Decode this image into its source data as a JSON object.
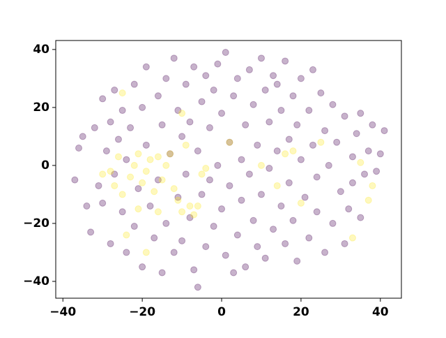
{
  "chart_data": {
    "type": "scatter",
    "xlim": [
      -41.8,
      45.3
    ],
    "ylim": [
      -45.8,
      43.1
    ],
    "xticks": [
      {
        "value": -40,
        "label": "−40"
      },
      {
        "value": -20,
        "label": "−20"
      },
      0,
      20,
      40
    ],
    "yticks": [
      {
        "value": -40,
        "label": "−40"
      },
      {
        "value": -20,
        "label": "−20"
      },
      0,
      20,
      40
    ],
    "grid": false,
    "alpha": 0.3,
    "series": [
      {
        "color": "#440154",
        "x": [
          -37,
          -36,
          -35,
          -34,
          -33,
          -32,
          -31,
          -30,
          -30,
          -29,
          -28,
          -28,
          -27,
          -27,
          -26,
          -25,
          -25,
          -24,
          -24,
          -23,
          -22,
          -22,
          -21,
          -20,
          -20,
          -19,
          -19,
          -18,
          -17,
          -16,
          -16,
          -15,
          -15,
          -14,
          -14,
          -13,
          -12,
          -12,
          -11,
          -11,
          -10,
          -10,
          -9,
          -9,
          -8,
          -8,
          -7,
          -7,
          -6,
          -6,
          -5,
          -5,
          -4,
          -4,
          -3,
          -3,
          -2,
          -2,
          -1,
          -1,
          0,
          0,
          1,
          1,
          2,
          2,
          3,
          3,
          4,
          4,
          5,
          5,
          6,
          6,
          7,
          7,
          8,
          8,
          9,
          9,
          10,
          10,
          11,
          11,
          12,
          12,
          13,
          13,
          14,
          14,
          15,
          15,
          16,
          16,
          17,
          17,
          18,
          18,
          19,
          19,
          20,
          20,
          21,
          22,
          22,
          23,
          23,
          24,
          24,
          25,
          26,
          26,
          27,
          28,
          28,
          29,
          30,
          31,
          31,
          32,
          33,
          33,
          34,
          35,
          35,
          36,
          37,
          38,
          39,
          40,
          41
        ],
        "values": [
          -5,
          6,
          10,
          -14,
          -23,
          13,
          -7,
          -13,
          23,
          5,
          -27,
          15,
          26,
          -3,
          9,
          19,
          -16,
          -30,
          2,
          13,
          -21,
          28,
          -8,
          20,
          -35,
          34,
          7,
          -14,
          -25,
          24,
          -5,
          14,
          -37,
          30,
          -20,
          4,
          37,
          -30,
          19,
          -11,
          10,
          -26,
          28,
          -3,
          -18,
          15,
          34,
          -36,
          -42,
          5,
          22,
          -10,
          -28,
          31,
          13,
          -5,
          -21,
          26,
          35,
          0,
          -15,
          18,
          39,
          -31,
          8,
          -7,
          -37,
          24,
          30,
          -24,
          2,
          -12,
          14,
          -35,
          33,
          -3,
          21,
          -19,
          -28,
          7,
          37,
          -10,
          26,
          -32,
          15,
          -1,
          -22,
          31,
          5,
          28,
          -14,
          19,
          -27,
          36,
          -6,
          9,
          24,
          -19,
          -33,
          14,
          2,
          30,
          -11,
          -25,
          19,
          33,
          7,
          -4,
          -16,
          25,
          -30,
          12,
          0,
          -20,
          21,
          8,
          -9,
          -27,
          17,
          -15,
          3,
          -6,
          11,
          -18,
          18,
          -3,
          5,
          14,
          -2,
          4,
          12
        ]
      },
      {
        "color": "#fde725",
        "x": [
          -30,
          -28,
          -27,
          -26,
          -25,
          -25,
          -24,
          -23,
          -22,
          -21,
          -21,
          -20,
          -19,
          -19,
          -18,
          -17,
          -16,
          -16,
          -15,
          -14,
          -13,
          -12,
          -11,
          -10,
          -10,
          -9,
          -8,
          -7,
          -6,
          -5,
          -4,
          2,
          10,
          14,
          16,
          18,
          20,
          25,
          33,
          35,
          37,
          38
        ],
        "values": [
          -3,
          -2,
          -7,
          3,
          25,
          -10,
          -24,
          -4,
          0,
          4,
          -15,
          -6,
          -30,
          -2,
          2,
          -9,
          3,
          -16,
          -5,
          0,
          4,
          -8,
          -12,
          18,
          -16,
          7,
          -14,
          -17,
          -14,
          -3,
          -1,
          8,
          0,
          -7,
          4,
          5,
          -13,
          8,
          -25,
          1,
          -12,
          -7
        ]
      }
    ]
  }
}
